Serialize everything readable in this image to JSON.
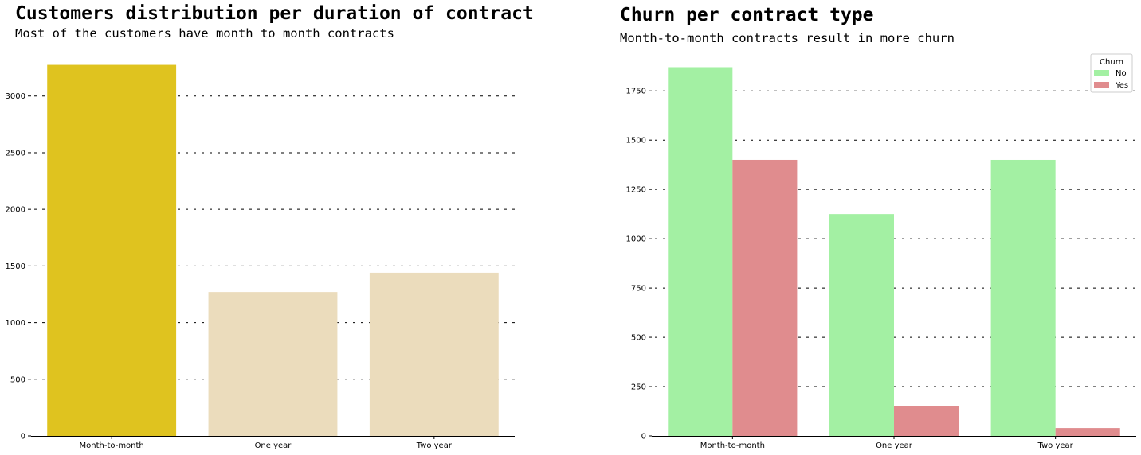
{
  "chart_data": [
    {
      "type": "bar",
      "title": "Customers distribution per duration of contract",
      "subtitle": "Most of the customers have month to month contracts",
      "xlabel": "",
      "ylabel": "",
      "categories": [
        "Month-to-month",
        "One year",
        "Two year"
      ],
      "values": [
        3275,
        1270,
        1440
      ],
      "colors": [
        "#dfc31f",
        "#ebdcbc",
        "#ebdcbc"
      ],
      "ylim": [
        0,
        3300
      ],
      "yticks": [
        0,
        500,
        1000,
        1500,
        2000,
        2500,
        3000
      ],
      "ytick_labels": [
        "0",
        "500",
        "1000",
        "1500",
        "2000",
        "2500",
        "3000"
      ],
      "grid": "y, dashed",
      "legend": "none"
    },
    {
      "type": "bar",
      "title": "Churn per contract type",
      "subtitle": "Month-to-month contracts result in more churn",
      "xlabel": "",
      "ylabel": "",
      "categories": [
        "Month-to-month",
        "One year",
        "Two year"
      ],
      "legend_title": "Churn",
      "series": [
        {
          "name": "No",
          "values": [
            1870,
            1125,
            1400
          ],
          "color": "#a3f0a3"
        },
        {
          "name": "Yes",
          "values": [
            1400,
            150,
            40
          ],
          "color": "#e08c8e"
        }
      ],
      "ylim": [
        0,
        1880
      ],
      "yticks": [
        0,
        250,
        500,
        750,
        1000,
        1250,
        1500,
        1750
      ],
      "ytick_labels": [
        "0",
        "250",
        "500",
        "750",
        "1000",
        "1250",
        "1500",
        "1750"
      ],
      "grid": "y, dashed",
      "legend": "top-right"
    }
  ]
}
